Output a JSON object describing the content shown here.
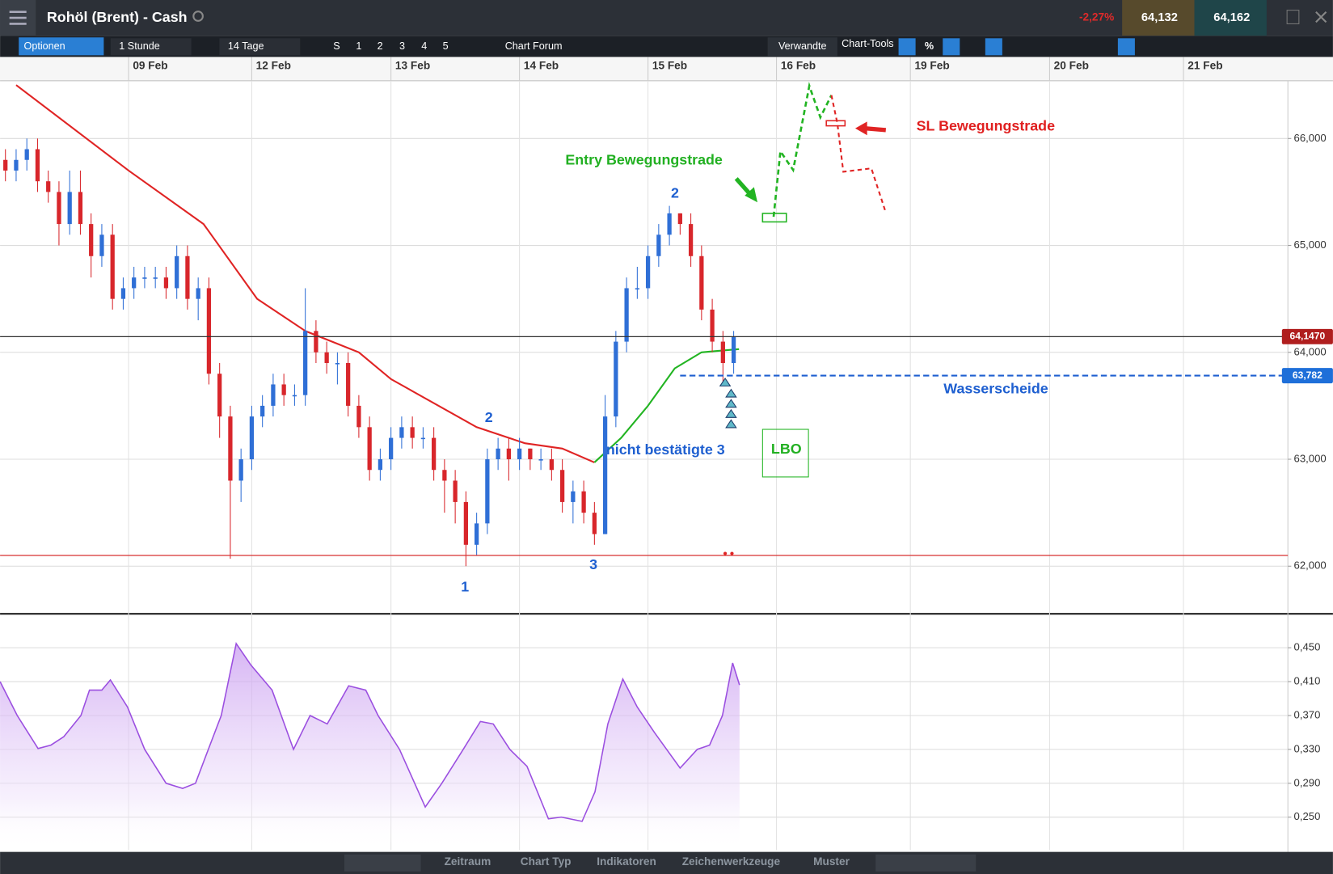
{
  "header": {
    "title": "Rohöl (Brent) - Cash",
    "change": "-2,27%",
    "bid": "64,132",
    "ask": "64,162"
  },
  "toolbar": {
    "options": "Optionen",
    "interval": "1 Stunde",
    "range": "14 Tage",
    "presets": [
      "S",
      "1",
      "2",
      "3",
      "4",
      "5"
    ],
    "forum": "Chart Forum",
    "related": "Verwandte",
    "tools": "Chart-Tools",
    "percent": "%"
  },
  "bottom_toolbar": [
    "Zeitraum",
    "Chart Typ",
    "Indikatoren",
    "Zeichenwerkzeuge",
    "Muster"
  ],
  "chart_data": [
    {
      "type": "candlestick",
      "up_color": "#2f6fd6",
      "down_color": "#d8262b",
      "grid": true,
      "xlim": [
        0,
        240.5
      ],
      "xticks": [
        {
          "value": 24,
          "label": "09 Feb"
        },
        {
          "value": 47,
          "label": "12 Feb"
        },
        {
          "value": 73,
          "label": "13 Feb"
        },
        {
          "value": 97,
          "label": "14 Feb"
        },
        {
          "value": 121,
          "label": "15 Feb"
        },
        {
          "value": 145,
          "label": "16 Feb"
        },
        {
          "value": 170,
          "label": "19 Feb"
        },
        {
          "value": 196,
          "label": "20 Feb"
        },
        {
          "value": 221,
          "label": "21 Feb"
        }
      ],
      "ylim": [
        61.57,
        66.54
      ],
      "yticks": [
        {
          "value": 62,
          "label": "62,000"
        },
        {
          "value": 63,
          "label": "63,000"
        },
        {
          "value": 64,
          "label": "64,000"
        },
        {
          "value": 65,
          "label": "65,000"
        },
        {
          "value": 66,
          "label": "66,000"
        }
      ],
      "x": [
        1,
        3,
        5,
        7,
        9,
        11,
        13,
        15,
        17,
        19,
        21,
        23,
        25,
        27,
        29,
        31,
        33,
        35,
        37,
        39,
        41,
        43,
        45,
        47,
        49,
        51,
        53,
        55,
        57,
        59,
        61,
        63,
        65,
        67,
        69,
        71,
        73,
        75,
        77,
        79,
        81,
        83,
        85,
        87,
        89,
        91,
        93,
        95,
        97,
        99,
        101,
        103,
        105,
        107,
        109,
        111,
        113,
        115,
        117,
        119,
        121,
        123,
        125,
        127,
        129,
        131,
        133,
        135,
        137
      ],
      "open": [
        65.8,
        65.7,
        65.8,
        65.9,
        65.6,
        65.5,
        65.2,
        65.5,
        65.2,
        64.9,
        65.1,
        64.5,
        64.6,
        64.7,
        64.7,
        64.7,
        64.6,
        64.9,
        64.5,
        64.6,
        63.8,
        63.4,
        62.8,
        63.0,
        63.4,
        63.5,
        63.7,
        63.6,
        63.6,
        64.2,
        64.0,
        63.9,
        63.9,
        63.5,
        63.3,
        62.9,
        63.0,
        63.2,
        63.3,
        63.2,
        63.2,
        62.9,
        62.8,
        62.6,
        62.2,
        62.4,
        63.0,
        63.1,
        63.0,
        63.1,
        63.0,
        63.0,
        62.9,
        62.6,
        62.7,
        62.5,
        62.3,
        63.4,
        64.1,
        64.6,
        64.6,
        64.9,
        65.1,
        65.3,
        65.2,
        64.9,
        64.4,
        64.1,
        63.9
      ],
      "high": [
        65.9,
        65.9,
        66.0,
        66.0,
        65.7,
        65.6,
        65.7,
        65.7,
        65.3,
        65.2,
        65.2,
        64.7,
        64.8,
        64.8,
        64.8,
        64.8,
        65.0,
        65.0,
        64.7,
        64.7,
        63.9,
        63.5,
        63.1,
        63.5,
        63.6,
        63.8,
        63.8,
        63.7,
        64.6,
        64.3,
        64.1,
        64.0,
        64.0,
        63.6,
        63.4,
        63.1,
        63.3,
        63.4,
        63.4,
        63.3,
        63.3,
        63.0,
        62.9,
        62.7,
        62.5,
        63.1,
        63.2,
        63.2,
        63.2,
        63.1,
        63.1,
        63.1,
        63.0,
        62.8,
        62.8,
        62.6,
        63.6,
        64.2,
        64.7,
        64.8,
        65.0,
        65.2,
        65.37,
        65.3,
        65.3,
        65.0,
        64.5,
        64.2,
        64.2
      ],
      "low": [
        65.6,
        65.6,
        65.7,
        65.5,
        65.4,
        65.0,
        65.1,
        65.1,
        64.7,
        64.8,
        64.4,
        64.4,
        64.5,
        64.6,
        64.6,
        64.5,
        64.5,
        64.4,
        64.3,
        63.7,
        63.2,
        62.07,
        62.6,
        62.9,
        63.3,
        63.4,
        63.5,
        63.5,
        63.5,
        63.9,
        63.8,
        63.7,
        63.4,
        63.2,
        62.8,
        62.8,
        62.9,
        63.1,
        63.1,
        63.1,
        62.8,
        62.5,
        62.4,
        62.0,
        62.1,
        62.3,
        62.9,
        62.8,
        62.9,
        62.9,
        62.9,
        62.8,
        62.5,
        62.4,
        62.4,
        62.2,
        62.3,
        63.3,
        64.0,
        64.5,
        64.5,
        64.8,
        65.0,
        65.1,
        64.8,
        64.3,
        64.0,
        63.7,
        63.8
      ],
      "close": [
        65.7,
        65.8,
        65.9,
        65.6,
        65.5,
        65.2,
        65.5,
        65.2,
        64.9,
        65.1,
        64.5,
        64.6,
        64.7,
        64.7,
        64.7,
        64.6,
        64.9,
        64.5,
        64.6,
        63.8,
        63.4,
        62.8,
        63.0,
        63.4,
        63.5,
        63.7,
        63.6,
        63.6,
        64.2,
        64.0,
        63.9,
        63.9,
        63.5,
        63.3,
        62.9,
        63.0,
        63.2,
        63.3,
        63.2,
        63.2,
        62.9,
        62.8,
        62.6,
        62.2,
        62.4,
        63.0,
        63.1,
        63.0,
        63.1,
        63.0,
        63.0,
        62.9,
        62.6,
        62.7,
        62.5,
        62.3,
        63.4,
        64.1,
        64.6,
        64.6,
        64.9,
        65.1,
        65.3,
        65.2,
        64.9,
        64.4,
        64.1,
        63.9,
        64.15
      ],
      "lines": [
        {
          "color": "#e02424",
          "x": [
            3,
            24,
            38,
            48,
            57,
            67,
            73,
            89,
            98,
            105,
            111
          ],
          "values": [
            66.5,
            65.7,
            65.2,
            64.5,
            64.2,
            64.0,
            63.75,
            63.3,
            63.15,
            63.1,
            62.97
          ]
        },
        {
          "color": "#22b422",
          "x": [
            111,
            116,
            121,
            126,
            131,
            138
          ],
          "values": [
            62.97,
            63.2,
            63.5,
            63.85,
            64.0,
            64.03
          ]
        }
      ],
      "hlines": [
        {
          "value": 64.147,
          "label": "64,1470",
          "color": "#333333",
          "label_color": "#b01e1e",
          "dashed": false
        },
        {
          "value": 63.782,
          "label": "63,782",
          "color": "#1e5fd0",
          "label_color": "#1e6fd9",
          "dashed": true,
          "x_start": 127
        },
        {
          "value": 62.1,
          "color": "#d83030",
          "dashed": false
        }
      ],
      "annotations": [
        "Entry Bewegungstrade",
        "SL Bewegungstrade",
        "Wasserscheide",
        "nicht bestätigte 3",
        "LBO",
        "1",
        "2",
        "3",
        "2"
      ]
    },
    {
      "type": "area",
      "color": "#9b4fe0",
      "grid": true,
      "xlim": [
        0,
        240.5
      ],
      "ylim": [
        0.211,
        0.487
      ],
      "yticks": [
        {
          "value": 0.25,
          "label": "0,250"
        },
        {
          "value": 0.29,
          "label": "0,290"
        },
        {
          "value": 0.33,
          "label": "0,330"
        },
        {
          "value": 0.37,
          "label": "0,370"
        },
        {
          "value": 0.41,
          "label": "0,410"
        },
        {
          "value": 0.45,
          "label": "0,450"
        }
      ],
      "x": [
        0,
        3.2,
        7.1,
        9.5,
        11.9,
        15.1,
        16.7,
        19,
        20.6,
        23.8,
        27,
        31,
        34.1,
        36.5,
        38.9,
        41.3,
        44.1,
        46.8,
        50.8,
        54.8,
        57.9,
        61.1,
        65.1,
        68.3,
        70.6,
        74.6,
        79.4,
        82.5,
        86.5,
        89.7,
        92.1,
        95.2,
        98.4,
        102.4,
        104.8,
        108.7,
        111.1,
        113.5,
        116.3,
        119,
        122.2,
        127,
        130.2,
        132.5,
        134.9,
        136.8,
        138.1
      ],
      "values": [
        0.41,
        0.37,
        0.331,
        0.335,
        0.345,
        0.37,
        0.4,
        0.4,
        0.412,
        0.38,
        0.33,
        0.29,
        0.284,
        0.29,
        0.33,
        0.37,
        0.455,
        0.43,
        0.4,
        0.33,
        0.37,
        0.36,
        0.405,
        0.4,
        0.37,
        0.33,
        0.262,
        0.29,
        0.33,
        0.363,
        0.36,
        0.33,
        0.31,
        0.248,
        0.25,
        0.245,
        0.28,
        0.36,
        0.413,
        0.38,
        0.35,
        0.308,
        0.33,
        0.335,
        0.37,
        0.432,
        0.406
      ]
    }
  ]
}
